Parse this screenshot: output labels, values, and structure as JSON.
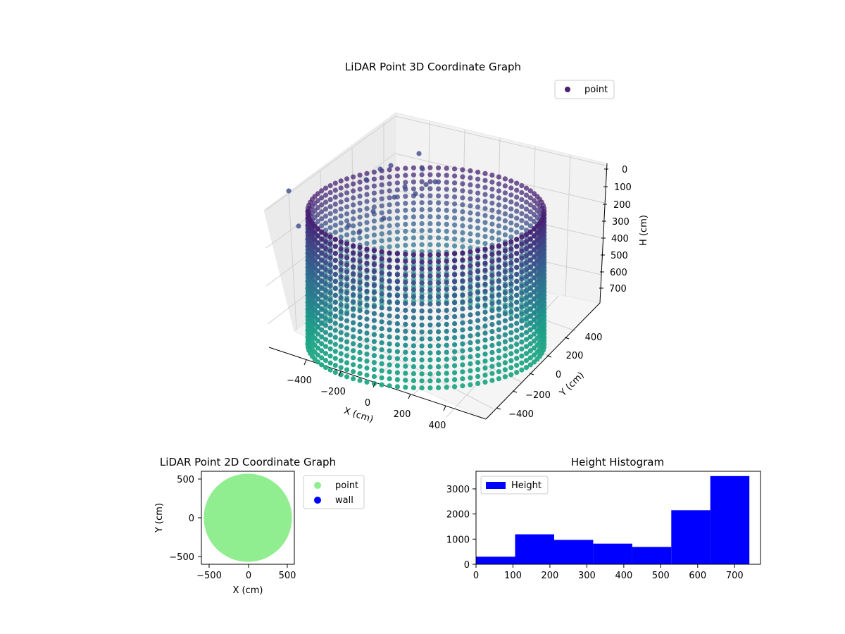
{
  "figure": {
    "background": "#ffffff"
  },
  "chart_data": [
    {
      "type": "scatter",
      "projection": "3d",
      "title": "LiDAR Point 3D Coordinate Graph",
      "xlabel": "X (cm)",
      "ylabel": "Y (cm)",
      "zlabel": "H (cm)",
      "x_ticks": [
        "−400",
        "−200",
        "0",
        "200",
        "400"
      ],
      "y_ticks": [
        "−400",
        "−200",
        "0",
        "200",
        "400"
      ],
      "z_ticks": [
        "0",
        "100",
        "200",
        "300",
        "400",
        "500",
        "600",
        "700"
      ],
      "xlim": [
        -560,
        560
      ],
      "ylim": [
        -560,
        560
      ],
      "zlim": [
        0,
        760
      ],
      "z_inverted": true,
      "grid": true,
      "legend": {
        "position": "top-right",
        "entries": [
          {
            "label": "point",
            "color": "#482173"
          }
        ]
      },
      "colormap": "viridis",
      "series": [
        {
          "name": "point",
          "shape": "cylinder wall",
          "center": [
            0,
            0
          ],
          "radius": 460,
          "h_range": [
            0,
            740
          ]
        }
      ]
    },
    {
      "type": "scatter",
      "title": "LiDAR Point 2D Coordinate Graph",
      "xlabel": "X (cm)",
      "ylabel": "Y (cm)",
      "x_ticks": [
        "−500",
        "0",
        "500"
      ],
      "y_ticks": [
        "500",
        "0",
        "−500"
      ],
      "xlim": [
        -590,
        590
      ],
      "ylim": [
        -600,
        600
      ],
      "legend": {
        "position": "outside-right",
        "entries": [
          {
            "label": "point",
            "color": "#90ee90"
          },
          {
            "label": "wall",
            "color": "#0000ff"
          }
        ]
      },
      "series": [
        {
          "name": "point",
          "color": "#90ee90",
          "shape": "filled disc",
          "center": [
            0,
            0
          ],
          "radius": 560
        }
      ]
    },
    {
      "type": "bar",
      "title": "Height Histogram",
      "x_ticks": [
        "0",
        "100",
        "200",
        "300",
        "400",
        "500",
        "600",
        "700"
      ],
      "y_ticks": [
        "0",
        "1000",
        "2000",
        "3000"
      ],
      "xlim": [
        0,
        770
      ],
      "ylim": [
        0,
        3700
      ],
      "legend": {
        "position": "top-left",
        "entries": [
          {
            "label": "Height",
            "color": "#0000ff"
          }
        ]
      },
      "series": [
        {
          "name": "Height",
          "color": "#0000ff",
          "bin_edges": [
            0,
            105.7,
            211.4,
            317.1,
            422.8,
            528.5,
            634.2,
            739.9
          ],
          "counts": [
            300,
            1190,
            970,
            820,
            690,
            2150,
            3510
          ]
        }
      ]
    }
  ]
}
